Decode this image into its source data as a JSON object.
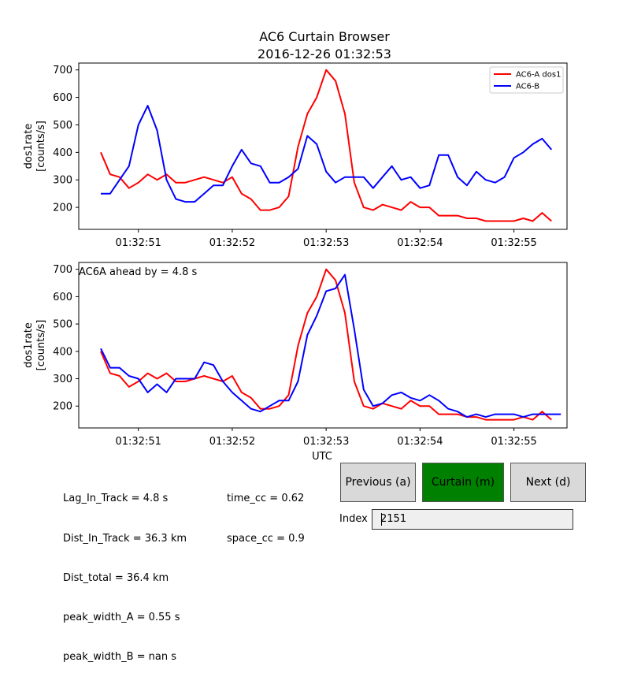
{
  "header": {
    "title": "AC6 Curtain Browser",
    "subtitle": "2016-12-26 01:32:53"
  },
  "chart_data": [
    {
      "type": "line",
      "ylabel_line1": "dos1rate",
      "ylabel_line2": "[counts/s]",
      "xlabel": "",
      "ylim": [
        120,
        725
      ],
      "xlim": [
        0.0,
        5.2
      ],
      "grid": false,
      "legend_position": "top-right",
      "x_ticks": [
        {
          "x": 0.4,
          "label": "01:32:51"
        },
        {
          "x": 1.4,
          "label": "01:32:52"
        },
        {
          "x": 2.4,
          "label": "01:32:53"
        },
        {
          "x": 3.4,
          "label": "01:32:54"
        },
        {
          "x": 4.4,
          "label": "01:32:55"
        }
      ],
      "y_ticks": [
        200,
        300,
        400,
        500,
        600,
        700
      ],
      "series": [
        {
          "name": "AC6-A dos1",
          "color": "#ff0000",
          "x": [
            0.0,
            0.1,
            0.2,
            0.3,
            0.4,
            0.5,
            0.6,
            0.7,
            0.8,
            0.9,
            1.0,
            1.1,
            1.2,
            1.3,
            1.4,
            1.5,
            1.6,
            1.7,
            1.8,
            1.9,
            2.0,
            2.1,
            2.2,
            2.3,
            2.4,
            2.5,
            2.6,
            2.7,
            2.8,
            2.9,
            3.0,
            3.1,
            3.2,
            3.3,
            3.4,
            3.5,
            3.6,
            3.7,
            3.8,
            3.9,
            4.0,
            4.1,
            4.2,
            4.3,
            4.4,
            4.5,
            4.6,
            4.7,
            4.8
          ],
          "values": [
            400,
            320,
            310,
            270,
            290,
            320,
            300,
            320,
            290,
            290,
            300,
            310,
            300,
            290,
            310,
            250,
            230,
            190,
            190,
            200,
            240,
            420,
            540,
            600,
            700,
            660,
            540,
            290,
            200,
            190,
            210,
            200,
            190,
            220,
            200,
            200,
            170,
            170,
            170,
            160,
            160,
            150,
            150,
            150,
            150,
            160,
            150,
            180,
            150
          ]
        },
        {
          "name": "AC6-B",
          "color": "#0000ff",
          "x": [
            0.0,
            0.1,
            0.2,
            0.3,
            0.4,
            0.5,
            0.6,
            0.7,
            0.8,
            0.9,
            1.0,
            1.1,
            1.2,
            1.3,
            1.4,
            1.5,
            1.6,
            1.7,
            1.8,
            1.9,
            2.0,
            2.1,
            2.2,
            2.3,
            2.4,
            2.5,
            2.6,
            2.7,
            2.8,
            2.9,
            3.0,
            3.1,
            3.2,
            3.3,
            3.4,
            3.5,
            3.6,
            3.7,
            3.8,
            3.9,
            4.0,
            4.1,
            4.2,
            4.3,
            4.4,
            4.5,
            4.6,
            4.7,
            4.8
          ],
          "values": [
            250,
            250,
            300,
            350,
            500,
            570,
            480,
            300,
            230,
            220,
            220,
            250,
            280,
            280,
            350,
            410,
            360,
            350,
            290,
            290,
            310,
            340,
            460,
            430,
            330,
            290,
            310,
            310,
            310,
            270,
            310,
            350,
            300,
            310,
            270,
            280,
            390,
            390,
            310,
            280,
            330,
            300,
            290,
            310,
            380,
            400,
            430,
            450,
            410
          ]
        }
      ]
    },
    {
      "type": "line",
      "ylabel_line1": "dos1rate",
      "ylabel_line2": "[counts/s]",
      "xlabel": "UTC",
      "annotation": "AC6A ahead by = 4.8 s",
      "ylim": [
        120,
        725
      ],
      "xlim": [
        0.0,
        5.2
      ],
      "grid": false,
      "x_ticks": [
        {
          "x": 0.4,
          "label": "01:32:51"
        },
        {
          "x": 1.4,
          "label": "01:32:52"
        },
        {
          "x": 2.4,
          "label": "01:32:53"
        },
        {
          "x": 3.4,
          "label": "01:32:54"
        },
        {
          "x": 4.4,
          "label": "01:32:55"
        }
      ],
      "y_ticks": [
        200,
        300,
        400,
        500,
        600,
        700
      ],
      "series": [
        {
          "color": "#ff0000",
          "x": [
            0.0,
            0.1,
            0.2,
            0.3,
            0.4,
            0.5,
            0.6,
            0.7,
            0.8,
            0.9,
            1.0,
            1.1,
            1.2,
            1.3,
            1.4,
            1.5,
            1.6,
            1.7,
            1.8,
            1.9,
            2.0,
            2.1,
            2.2,
            2.3,
            2.4,
            2.5,
            2.6,
            2.7,
            2.8,
            2.9,
            3.0,
            3.1,
            3.2,
            3.3,
            3.4,
            3.5,
            3.6,
            3.7,
            3.8,
            3.9,
            4.0,
            4.1,
            4.2,
            4.3,
            4.4,
            4.5,
            4.6,
            4.7,
            4.8
          ],
          "values": [
            400,
            320,
            310,
            270,
            290,
            320,
            300,
            320,
            290,
            290,
            300,
            310,
            300,
            290,
            310,
            250,
            230,
            190,
            190,
            200,
            240,
            420,
            540,
            600,
            700,
            660,
            540,
            290,
            200,
            190,
            210,
            200,
            190,
            220,
            200,
            200,
            170,
            170,
            170,
            160,
            160,
            150,
            150,
            150,
            150,
            160,
            150,
            180,
            150
          ]
        },
        {
          "color": "#0000ff",
          "x": [
            0.0,
            0.1,
            0.2,
            0.3,
            0.4,
            0.5,
            0.6,
            0.7,
            0.8,
            0.9,
            1.0,
            1.1,
            1.2,
            1.3,
            1.4,
            1.5,
            1.6,
            1.7,
            1.8,
            1.9,
            2.0,
            2.1,
            2.2,
            2.3,
            2.4,
            2.5,
            2.6,
            2.7,
            2.8,
            2.9,
            3.0,
            3.1,
            3.2,
            3.3,
            3.4,
            3.5,
            3.6,
            3.7,
            3.8,
            3.9,
            4.0,
            4.1,
            4.2,
            4.3,
            4.4,
            4.5,
            4.6,
            4.7,
            4.8,
            4.9
          ],
          "values": [
            410,
            340,
            340,
            310,
            300,
            250,
            280,
            250,
            300,
            300,
            300,
            360,
            350,
            290,
            250,
            220,
            190,
            180,
            200,
            220,
            220,
            290,
            460,
            530,
            620,
            630,
            680,
            480,
            260,
            200,
            210,
            240,
            250,
            230,
            220,
            240,
            220,
            190,
            180,
            160,
            170,
            160,
            170,
            170,
            170,
            160,
            170,
            170,
            170,
            170
          ]
        }
      ]
    }
  ],
  "stats_left": [
    "Lag_In_Track = 4.8 s",
    "Dist_In_Track = 36.3 km",
    "Dist_total = 36.4 km",
    "peak_width_A = 0.55 s",
    "peak_width_B = nan s"
  ],
  "stats_right": [
    "time_cc = 0.62",
    "space_cc = 0.9"
  ],
  "controls": {
    "prev_label": "Previous (a)",
    "curtain_label": "Curtain (m)",
    "next_label": "Next (d)",
    "index_label": "Index",
    "index_value": "2151",
    "curtain_color": "#008000"
  }
}
